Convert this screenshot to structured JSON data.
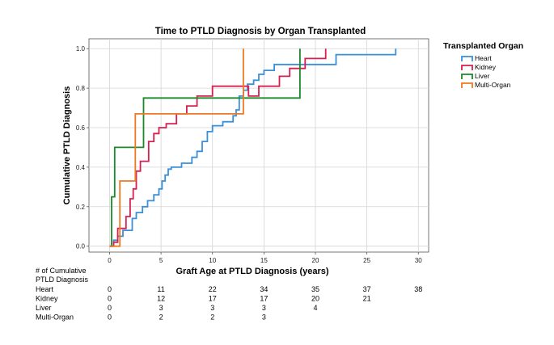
{
  "chart_data": {
    "type": "line",
    "step": true,
    "title": "Time to PTLD Diagnosis by Organ Transplanted",
    "xlabel": "Graft Age at PTLD Diagnosis (years)",
    "ylabel": "Cumulative PTLD Diagnosis",
    "xlim": [
      -2,
      31
    ],
    "ylim": [
      -0.03,
      1.05
    ],
    "xticks": [
      0,
      5,
      10,
      15,
      20,
      25,
      30
    ],
    "yticks": [
      0.0,
      0.2,
      0.4,
      0.6,
      0.8,
      1.0
    ],
    "ytick_labels": [
      "0.0",
      "0.2",
      "0.4",
      "0.6",
      "0.8",
      "1.0"
    ],
    "grid": true,
    "legend": {
      "title": "Transplanted Organ",
      "position": "right"
    },
    "series": [
      {
        "name": "Heart",
        "color": "#3a8fd8",
        "x": [
          0,
          0.4,
          0.8,
          1.3,
          2.2,
          2.6,
          3.2,
          3.7,
          4.3,
          4.8,
          5.1,
          5.4,
          5.7,
          6.0,
          7.0,
          8.0,
          8.5,
          9.0,
          9.5,
          10.0,
          11.0,
          12.0,
          12.3,
          12.6,
          13.0,
          13.4,
          14.0,
          14.5,
          15.0,
          16.0,
          18.5,
          22.0,
          27.8
        ],
        "y": [
          0,
          0.03,
          0.05,
          0.08,
          0.14,
          0.17,
          0.2,
          0.23,
          0.26,
          0.29,
          0.33,
          0.36,
          0.39,
          0.4,
          0.42,
          0.45,
          0.48,
          0.53,
          0.58,
          0.61,
          0.63,
          0.66,
          0.69,
          0.76,
          0.79,
          0.82,
          0.84,
          0.87,
          0.89,
          0.92,
          0.92,
          0.97,
          1.0
        ]
      },
      {
        "name": "Kidney",
        "color": "#d62050",
        "x": [
          0,
          0.4,
          0.8,
          1.6,
          2.0,
          2.3,
          2.6,
          3.0,
          3.8,
          4.3,
          4.8,
          5.5,
          6.5,
          7.5,
          8.5,
          10.0,
          12.0,
          13.5,
          14.5,
          15.5,
          16.5,
          17.5,
          19.0,
          21.0
        ],
        "y": [
          0,
          0.02,
          0.09,
          0.15,
          0.24,
          0.29,
          0.38,
          0.43,
          0.53,
          0.57,
          0.6,
          0.62,
          0.67,
          0.71,
          0.76,
          0.81,
          0.81,
          0.76,
          0.81,
          0.81,
          0.86,
          0.9,
          0.95,
          1.0
        ]
      },
      {
        "name": "Liver",
        "color": "#1a8a2a",
        "x": [
          0,
          0.2,
          0.5,
          3.3,
          18.5
        ],
        "y": [
          0,
          0.25,
          0.5,
          0.75,
          1.0
        ]
      },
      {
        "name": "Multi-Organ",
        "color": "#f07820",
        "x": [
          0,
          1.0,
          2.5,
          13.0
        ],
        "y": [
          0,
          0.33,
          0.67,
          1.0
        ]
      }
    ]
  },
  "risk_table": {
    "header": "# of Cumulative PTLD Diagnosis",
    "header_line1": "# of Cumulative",
    "header_line2": "PTLD Diagnosis",
    "rows": [
      {
        "label": "Heart",
        "values": [
          "0",
          "11",
          "22",
          "34",
          "35",
          "37",
          "38"
        ]
      },
      {
        "label": "Kidney",
        "values": [
          "0",
          "12",
          "17",
          "17",
          "20",
          "21"
        ]
      },
      {
        "label": "Liver",
        "values": [
          "0",
          "3",
          "3",
          "3",
          "4"
        ]
      },
      {
        "label": "Multi-Organ",
        "values": [
          "0",
          "2",
          "2",
          "3"
        ]
      }
    ]
  }
}
